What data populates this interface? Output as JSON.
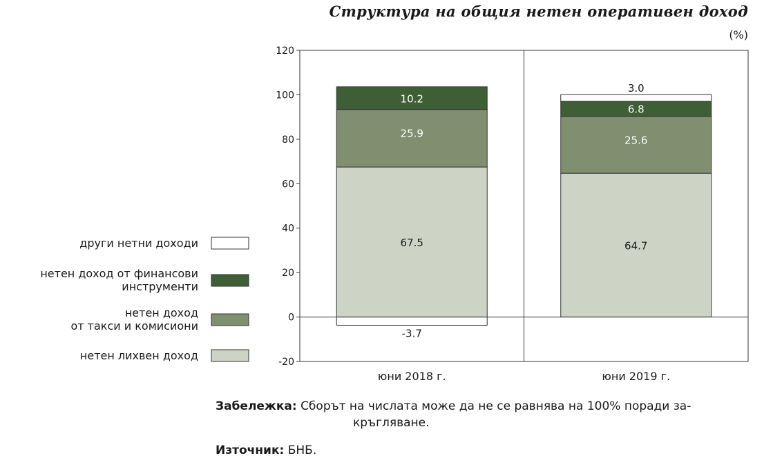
{
  "chart_data": {
    "type": "bar",
    "stacked": true,
    "title": "Структура на общия нетен оперативен доход",
    "unit_label": "(%)",
    "categories": [
      "юни 2018 г.",
      "юни 2019 г."
    ],
    "series": [
      {
        "name": "нетен лихвен доход",
        "values": [
          67.5,
          64.7
        ],
        "color": "#cdd4c5"
      },
      {
        "name": "нетен доход от такси и комисиони",
        "values": [
          25.9,
          25.6
        ],
        "color": "#7f8f6f"
      },
      {
        "name": "нетен доход от финансови инструменти",
        "values": [
          10.2,
          6.8
        ],
        "color": "#3e5e35"
      },
      {
        "name": "други нетни доходи",
        "values": [
          -3.7,
          3.0
        ],
        "color": "#ffffff"
      }
    ],
    "data_labels": [
      [
        "67.5",
        "25.9",
        "10.2",
        "-3.7"
      ],
      [
        "64.7",
        "25.6",
        "6.8",
        "3.0"
      ]
    ],
    "yticks": [
      "120",
      "100",
      "80",
      "60",
      "40",
      "20",
      "0",
      "-20"
    ],
    "ylim": [
      -20,
      120
    ],
    "legend_lines": [
      [
        "други нетни доходи"
      ],
      [
        "нетен доход от финансови",
        "инструменти"
      ],
      [
        "нетен доход",
        "от такси и комисиони"
      ],
      [
        "нетен лихвен доход"
      ]
    ],
    "legend_placement": "left",
    "grid": false
  },
  "note": {
    "label": "Забележка:",
    "text_line1": "Сборът на числата може да не се равнява на 100% поради за-",
    "text_line2": "кръгляване."
  },
  "source": {
    "label": "Източник:",
    "text": "БНБ."
  }
}
